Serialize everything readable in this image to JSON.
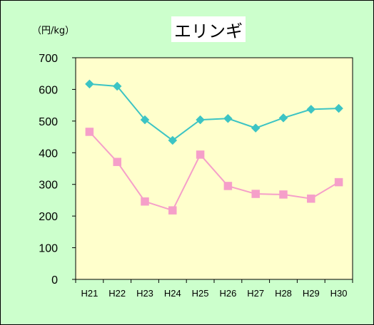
{
  "chart_data": {
    "type": "line",
    "title": "エリンギ",
    "unit_label": "（円/kg）",
    "categories": [
      "H21",
      "H22",
      "H23",
      "H24",
      "H25",
      "H26",
      "H27",
      "H28",
      "H29",
      "H30"
    ],
    "ylim": [
      0,
      700
    ],
    "yticks": [
      0,
      100,
      200,
      300,
      400,
      500,
      600,
      700
    ],
    "grid": false,
    "legend": "none",
    "series": [
      {
        "marker": "diamond",
        "color": "#3cc4c4",
        "values": [
          617,
          610,
          504,
          439,
          504,
          508,
          478,
          510,
          537,
          540
        ]
      },
      {
        "marker": "square",
        "color": "#f59fc9",
        "values": [
          466,
          371,
          246,
          218,
          394,
          295,
          270,
          268,
          255,
          307
        ]
      }
    ]
  }
}
